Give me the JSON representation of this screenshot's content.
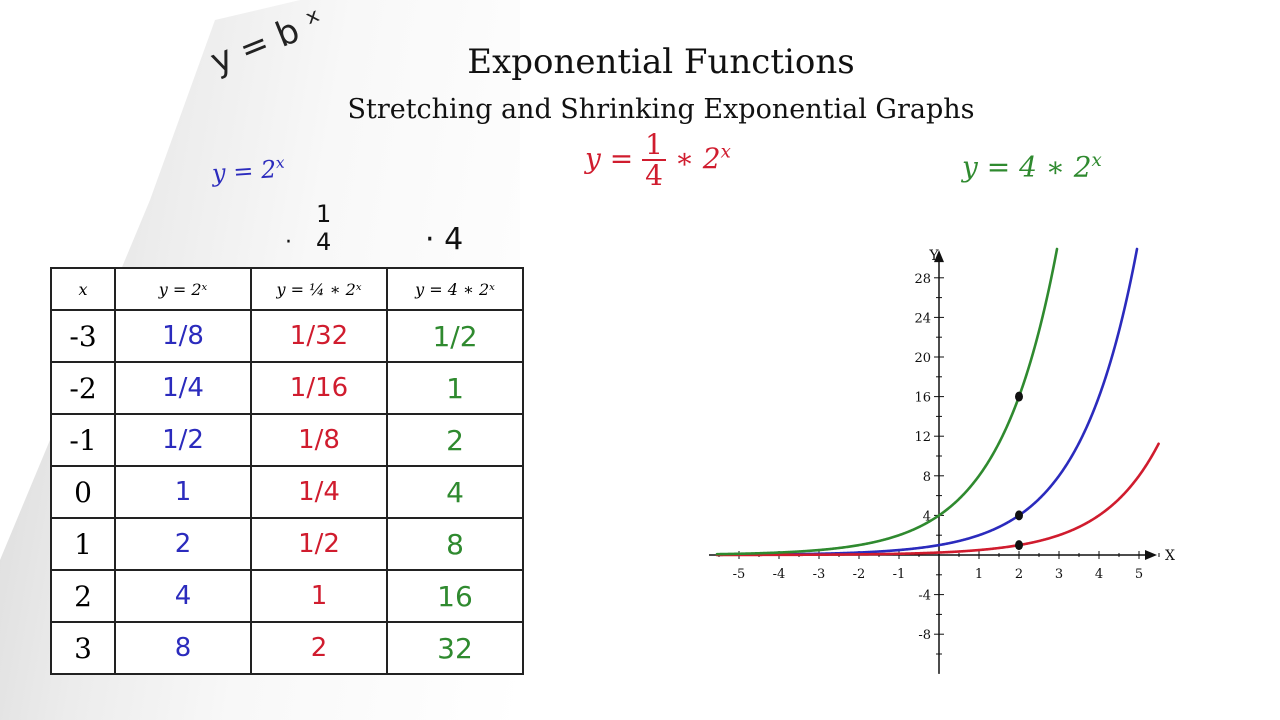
{
  "title": "Exponential Functions",
  "subtitle": "Stretching and Shrinking Exponential Graphs",
  "handwritten": {
    "general_form": "y = b ˣ",
    "multiplier_red_dot": "·",
    "multiplier_red_num": "1",
    "multiplier_red_den": "4",
    "multiplier_green": "· 4"
  },
  "equations": {
    "blue_base": "y = 2",
    "blue_exp": "x",
    "red_lhs": "y = ",
    "red_num": "1",
    "red_den": "4",
    "red_rhs": " ∗ 2",
    "red_exp": "x",
    "green_base": "y = 4 ∗ 2",
    "green_exp": "x"
  },
  "table": {
    "headers": [
      "x",
      "y = 2ˣ",
      "y = ¼ ∗ 2ˣ",
      "y = 4 ∗ 2ˣ"
    ],
    "rows": [
      [
        "-3",
        "1/8",
        "1/32",
        "1/2"
      ],
      [
        "-2",
        "1/4",
        "1/16",
        "1"
      ],
      [
        "-1",
        "1/2",
        "1/8",
        "2"
      ],
      [
        "0",
        "1",
        "1/4",
        "4"
      ],
      [
        "1",
        "2",
        "1/2",
        "8"
      ],
      [
        "2",
        "4",
        "1",
        "16"
      ],
      [
        "3",
        "8",
        "2",
        "32"
      ]
    ]
  },
  "colors": {
    "blue": "#2b2bbd",
    "red": "#d01c2e",
    "green": "#2f8a2f"
  },
  "chart_data": {
    "type": "line",
    "xlabel": "X",
    "ylabel": "Y",
    "xlim": [
      -5.5,
      5.5
    ],
    "ylim": [
      -11,
      31
    ],
    "x_ticks": [
      -5,
      -4,
      -3,
      -2,
      -1,
      1,
      2,
      3,
      4,
      5
    ],
    "y_ticks": [
      28,
      24,
      20,
      16,
      12,
      8,
      4,
      -4,
      -8
    ],
    "series": [
      {
        "color": "#2b2bbd",
        "base": 2,
        "coef": 1
      },
      {
        "color": "#d01c2e",
        "base": 2,
        "coef": 0.25
      },
      {
        "color": "#2f8a2f",
        "base": 2,
        "coef": 4
      }
    ],
    "points": [
      {
        "x": 2,
        "y": 16
      },
      {
        "x": 2,
        "y": 4
      },
      {
        "x": 2,
        "y": 1
      }
    ]
  }
}
